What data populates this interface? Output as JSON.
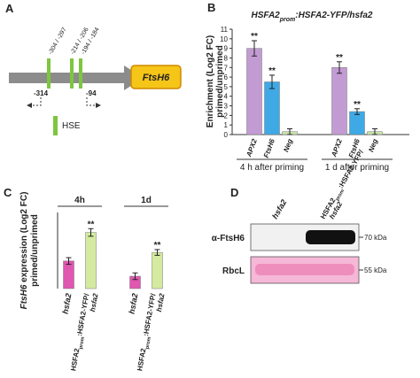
{
  "panels": {
    "a": "A",
    "b": "B",
    "c": "C",
    "d": "D"
  },
  "promoter_diagram": {
    "gene": "FtsH6",
    "hse_label": "HSE",
    "sites": [
      "-304 / -297",
      "-214 / -206",
      "-194 / -184"
    ],
    "primer_left": "-314",
    "primer_right": "-94"
  },
  "chart_data": [
    {
      "type": "bar",
      "title": [
        "HSFA2",
        "prom",
        ":HSFA2-YFP/hsfa2"
      ],
      "y_label": [
        "Enrichment (Log2 FC)",
        "primed/unprimed"
      ],
      "groups": [
        "4 h after priming",
        "1 d after priming"
      ],
      "series": [
        {
          "name": "APX2",
          "color": "#c39bd3",
          "values": [
            9.0,
            7.0
          ],
          "errors": [
            0.8,
            0.6
          ],
          "annotations": [
            "**",
            "**"
          ]
        },
        {
          "name": "FtsH6",
          "color": "#3fa9e6",
          "values": [
            5.5,
            2.4
          ],
          "errors": [
            0.7,
            0.3
          ],
          "annotations": [
            "**",
            "**"
          ]
        },
        {
          "name": "Neg",
          "color": "#c8e3a8",
          "values": [
            0.3,
            0.3
          ],
          "errors": [
            0.3,
            0.3
          ]
        }
      ],
      "ylim": [
        0,
        11
      ],
      "yticks": [
        0,
        1,
        2,
        3,
        4,
        5,
        6,
        7,
        8,
        9,
        10,
        11
      ]
    },
    {
      "type": "bar",
      "y_label": [
        [
          "FtsH6",
          " expression (Log2 FC)"
        ],
        "primed/unprimed"
      ],
      "groups": [
        "4h",
        "1d"
      ],
      "series": [
        {
          "name": [
            "hsfa2"
          ],
          "color": "#e056b0",
          "values": [
            2.9,
            1.3
          ],
          "errors": [
            0.35,
            0.35
          ]
        },
        {
          "name": [
            "HSFA2",
            "prom",
            ":HSFA2-YFP/",
            "hsfa2"
          ],
          "color": "#d4eaa0",
          "values": [
            5.9,
            3.8
          ],
          "errors": [
            0.4,
            0.3
          ],
          "annotations": [
            "**",
            "**"
          ]
        }
      ],
      "ylim": [
        0,
        8
      ]
    }
  ],
  "blot": {
    "columns": [
      [
        "hsfa2"
      ],
      [
        "HSFA2",
        "prom",
        ":HSFA2-YFP/",
        "hsfa2"
      ]
    ],
    "rows": [
      {
        "label": "α-FtsH6",
        "marker": "70 kDa"
      },
      {
        "label": "RbcL",
        "marker": "55 kDa"
      }
    ]
  }
}
